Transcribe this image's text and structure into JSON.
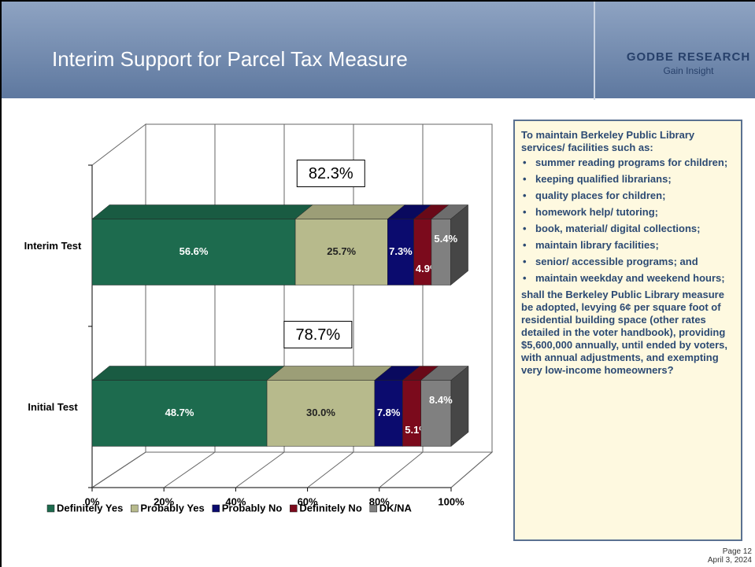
{
  "header": {
    "title": "Interim Support for Parcel Tax Measure",
    "logo": "GODBE RESEARCH",
    "tagline": "Gain Insight"
  },
  "chart_data": {
    "type": "bar",
    "orientation": "horizontal",
    "stacked": true,
    "three_d": true,
    "categories": [
      "Interim Test",
      "Initial Test"
    ],
    "series": [
      {
        "name": "Definitely Yes",
        "color": "#1d6b4e",
        "values": [
          56.6,
          48.7
        ],
        "value_labels": [
          "56.6%",
          "48.7%"
        ]
      },
      {
        "name": "Probably Yes",
        "color": "#b7ba8c",
        "values": [
          25.7,
          30.0
        ],
        "value_labels": [
          "25.7%",
          "30.0%"
        ]
      },
      {
        "name": "Probably No",
        "color": "#0b0b6e",
        "values": [
          7.3,
          7.8
        ],
        "value_labels": [
          "7.3%",
          "7.8%"
        ]
      },
      {
        "name": "Definitely No",
        "color": "#7b0a1c",
        "values": [
          4.9,
          5.1
        ],
        "value_labels": [
          "4.9%",
          "5.1%"
        ]
      },
      {
        "name": "DK/NA",
        "color": "#808080",
        "values": [
          5.4,
          8.4
        ],
        "value_labels": [
          "5.4%",
          "8.4%"
        ]
      }
    ],
    "totals": [
      {
        "value": 82.3,
        "label": "82.3%"
      },
      {
        "value": 78.7,
        "label": "78.7%"
      }
    ],
    "xlim": [
      0,
      100
    ],
    "xticks": [
      {
        "value": 0,
        "label": "0%"
      },
      {
        "value": 20,
        "label": "20%"
      },
      {
        "value": 40,
        "label": "40%"
      },
      {
        "value": 60,
        "label": "60%"
      },
      {
        "value": 80,
        "label": "80%"
      },
      {
        "value": 100,
        "label": "100%"
      }
    ],
    "grid": true,
    "legend": "bottom"
  },
  "sidebox": {
    "intro": "To maintain Berkeley Public Library services/ facilities such as:",
    "bullets": [
      "summer reading programs for children;",
      "keeping qualified librarians;",
      "quality places for children;",
      "homework help/ tutoring;",
      "book, material/ digital collections;",
      "maintain library facilities;",
      "senior/ accessible programs; and",
      "maintain weekday and weekend hours;"
    ],
    "closing": "shall the Berkeley Public Library measure be adopted, levying 6¢ per square foot of residential building space (other rates detailed in the voter handbook), providing $5,600,000 annually, until ended by voters, with annual adjustments, and exempting very low-income homeowners?"
  },
  "footer": {
    "page": "Page 12",
    "date": "April 3, 2024"
  }
}
